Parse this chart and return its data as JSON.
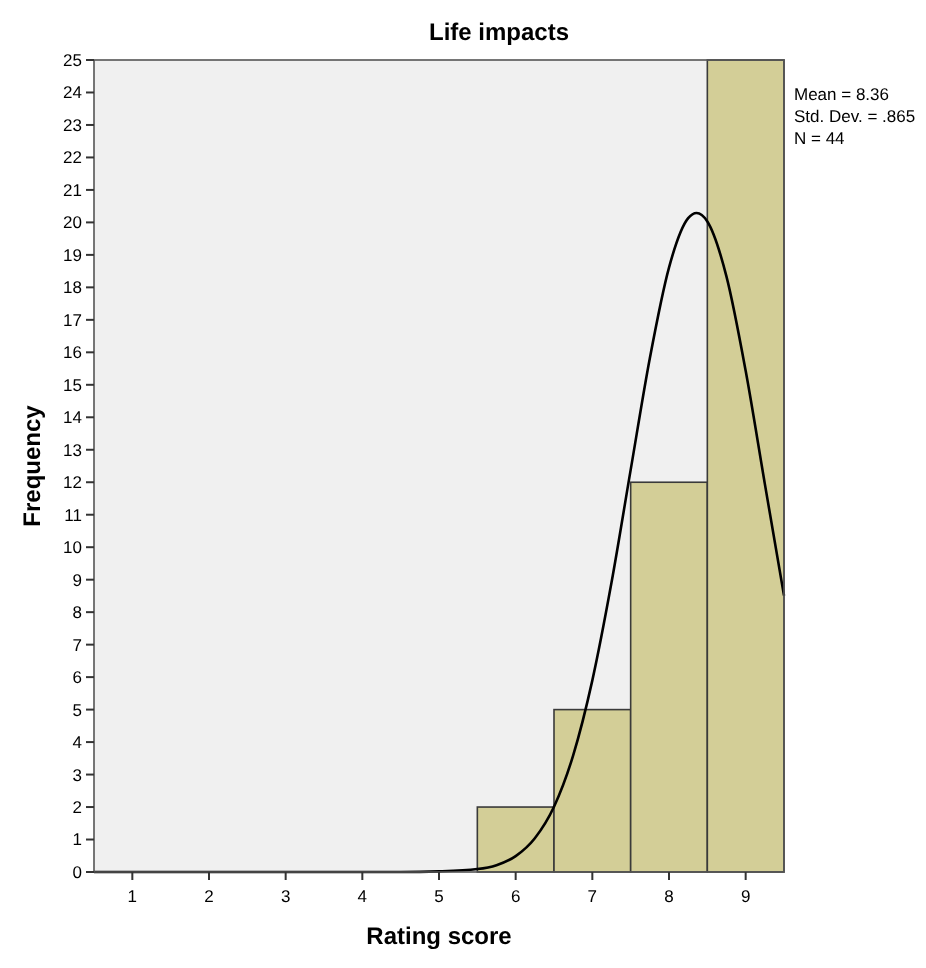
{
  "chart_data": {
    "type": "histogram",
    "title": "Life impacts",
    "xlabel": "Rating score",
    "ylabel": "Frequency",
    "bins": [
      5.5,
      6.5,
      7.5,
      8.5,
      9.5
    ],
    "values": [
      2,
      5,
      12,
      25
    ],
    "color": "#d3ce97",
    "series": [
      {
        "type": "line",
        "color": "#000000",
        "x": [
          0.5,
          4.5,
          5,
          5.5,
          5.75,
          6,
          6.25,
          6.5,
          6.75,
          7,
          7.25,
          7.5,
          7.75,
          8,
          8.25,
          8.36,
          8.5,
          8.75,
          9,
          9.25,
          9.5
        ],
        "values": [
          0,
          0,
          0.02,
          0.09,
          0.21,
          0.49,
          1.04,
          2.01,
          3.59,
          5.9,
          8.91,
          12.38,
          15.82,
          18.61,
          20.13,
          20.29,
          20.03,
          18.33,
          15.43,
          11.95,
          8.51
        ]
      }
    ],
    "xlim": [
      0.5,
      9.5
    ],
    "xticks": [
      1,
      2,
      3,
      4,
      5,
      6,
      7,
      8,
      9
    ],
    "ylim": [
      0,
      25
    ],
    "yticks": [
      0,
      1,
      2,
      3,
      4,
      5,
      6,
      7,
      8,
      9,
      10,
      11,
      12,
      13,
      14,
      15,
      16,
      17,
      18,
      19,
      20,
      21,
      22,
      23,
      24,
      25
    ],
    "grid": false,
    "line_style": "solid",
    "marker": "none",
    "annotations": [
      "Mean = 8.36",
      "Std. Dev. = .865",
      "N = 44"
    ]
  }
}
